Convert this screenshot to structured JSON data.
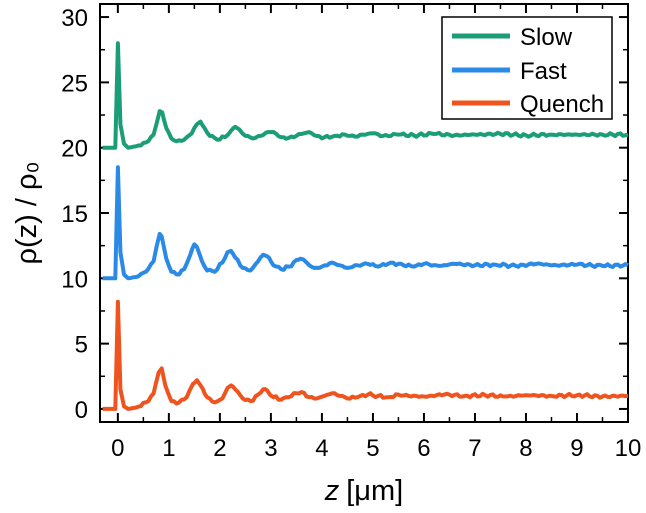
{
  "chart_data": {
    "type": "line",
    "title": "",
    "xlabel": {
      "var": "z",
      "unit": "[μm]"
    },
    "ylabel": "ρ(z) / ρ₀",
    "xlim": [
      -0.35,
      10
    ],
    "ylim": [
      -1,
      31
    ],
    "x_ticks": [
      0,
      1,
      2,
      3,
      4,
      5,
      6,
      7,
      8,
      9,
      10
    ],
    "y_ticks": [
      0,
      5,
      10,
      15,
      20,
      25,
      30
    ],
    "x_tick_labels": [
      "0",
      "1",
      "2",
      "3",
      "4",
      "5",
      "6",
      "7",
      "8",
      "9",
      "10"
    ],
    "y_tick_labels": [
      "0",
      "5",
      "10",
      "15",
      "20",
      "25",
      "30"
    ],
    "legend_position": "top-right",
    "series": [
      {
        "name": "Slow",
        "color": "#1b9e77",
        "offset": 20,
        "x": [
          -0.3,
          -0.05,
          0.0,
          0.05,
          0.12,
          0.2,
          0.35,
          0.55,
          0.7,
          0.82,
          0.87,
          0.95,
          1.05,
          1.15,
          1.3,
          1.45,
          1.55,
          1.62,
          1.7,
          1.8,
          1.95,
          2.1,
          2.22,
          2.3,
          2.38,
          2.5,
          2.65,
          2.8,
          2.95,
          3.05,
          3.2,
          3.35,
          3.5,
          3.65,
          3.8,
          3.9,
          4.05,
          4.25,
          4.45,
          4.65,
          4.8,
          5.0,
          5.2,
          5.5,
          5.8,
          6.2,
          6.6,
          7.0,
          7.5,
          8.0,
          8.5,
          9.0,
          9.5,
          10.0
        ],
        "values": [
          20.0,
          20.0,
          28.0,
          21.8,
          20.3,
          20.0,
          20.1,
          20.4,
          21.0,
          22.8,
          22.7,
          21.5,
          20.7,
          20.5,
          20.6,
          21.1,
          21.8,
          22.0,
          21.5,
          20.9,
          20.6,
          20.8,
          21.3,
          21.6,
          21.4,
          20.9,
          20.7,
          20.9,
          21.2,
          21.2,
          20.8,
          20.75,
          20.9,
          21.1,
          21.1,
          20.9,
          20.8,
          20.9,
          21.0,
          20.85,
          21.0,
          21.1,
          20.9,
          21.0,
          20.95,
          21.05,
          20.95,
          21.0,
          21.05,
          20.95,
          21.0,
          21.0,
          21.0,
          21.0
        ]
      },
      {
        "name": "Fast",
        "color": "#2b8ae6",
        "offset": 10,
        "x": [
          -0.3,
          -0.05,
          0.0,
          0.05,
          0.12,
          0.2,
          0.35,
          0.55,
          0.7,
          0.82,
          0.86,
          0.95,
          1.05,
          1.15,
          1.3,
          1.42,
          1.5,
          1.55,
          1.65,
          1.75,
          1.9,
          2.05,
          2.15,
          2.22,
          2.3,
          2.45,
          2.6,
          2.75,
          2.85,
          2.92,
          3.05,
          3.2,
          3.35,
          3.5,
          3.58,
          3.7,
          3.85,
          4.0,
          4.2,
          4.35,
          4.5,
          4.7,
          4.9,
          5.1,
          5.35,
          5.6,
          5.8,
          6.0,
          6.3,
          6.6,
          7.0,
          7.4,
          7.8,
          8.2,
          8.6,
          9.0,
          9.5,
          10.0
        ],
        "values": [
          10.0,
          10.0,
          18.5,
          12.0,
          10.3,
          10.0,
          10.1,
          10.5,
          11.3,
          13.4,
          13.2,
          11.5,
          10.5,
          10.3,
          10.7,
          11.8,
          12.6,
          12.4,
          11.3,
          10.6,
          10.5,
          11.2,
          12.0,
          12.1,
          11.6,
          10.8,
          10.6,
          11.3,
          11.8,
          11.7,
          11.0,
          10.7,
          10.9,
          11.4,
          11.5,
          11.2,
          10.8,
          10.9,
          11.2,
          11.0,
          10.8,
          11.0,
          11.1,
          10.9,
          11.2,
          11.0,
          10.9,
          11.1,
          10.95,
          11.1,
          11.0,
          11.05,
          10.95,
          11.1,
          11.0,
          11.05,
          10.95,
          11.0
        ]
      },
      {
        "name": "Quench",
        "color": "#f0541e",
        "offset": 0,
        "x": [
          -0.3,
          -0.05,
          0.0,
          0.05,
          0.12,
          0.2,
          0.35,
          0.55,
          0.7,
          0.8,
          0.86,
          0.93,
          1.05,
          1.2,
          1.35,
          1.47,
          1.55,
          1.62,
          1.75,
          1.9,
          2.05,
          2.15,
          2.22,
          2.3,
          2.45,
          2.6,
          2.75,
          2.85,
          2.93,
          3.05,
          3.2,
          3.35,
          3.5,
          3.6,
          3.75,
          3.9,
          4.05,
          4.2,
          4.35,
          4.5,
          4.7,
          4.9,
          5.1,
          5.3,
          5.5,
          5.7,
          6.0,
          6.4,
          6.8,
          7.2,
          7.6,
          8.0,
          8.5,
          9.0,
          9.5,
          10.0
        ],
        "values": [
          0.0,
          0.0,
          8.2,
          1.5,
          0.2,
          0.0,
          0.1,
          0.5,
          1.2,
          2.8,
          3.1,
          1.8,
          0.6,
          0.5,
          0.9,
          1.9,
          2.2,
          1.8,
          0.9,
          0.5,
          0.8,
          1.6,
          1.8,
          1.5,
          0.8,
          0.6,
          1.1,
          1.5,
          1.4,
          0.9,
          0.7,
          0.9,
          1.2,
          1.3,
          0.9,
          0.8,
          1.0,
          1.2,
          1.0,
          0.8,
          0.9,
          1.1,
          1.0,
          0.9,
          1.1,
          1.0,
          0.95,
          1.1,
          1.0,
          1.05,
          0.95,
          1.05,
          1.0,
          1.05,
          0.95,
          1.0
        ]
      }
    ]
  }
}
